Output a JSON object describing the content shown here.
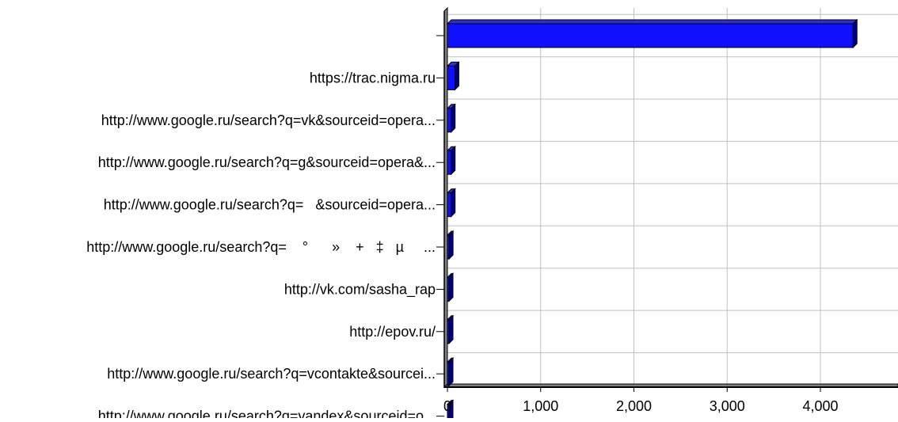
{
  "chart_data": {
    "type": "bar",
    "orientation": "horizontal",
    "style": "3d",
    "categories": [
      "",
      "https://trac.nigma.ru",
      "http://www.google.ru/search?q=vk&sourceid=opera...",
      "http://www.google.ru/search?q=g&sourceid=opera&...",
      "http://www.google.ru/search?q=   &sourceid=opera...",
      "http://www.google.ru/search?q=    °      »    +   ‡   µ     ...",
      "http://vk.com/sasha_rap",
      "http://epov.ru/",
      "http://www.google.ru/search?q=vcontakte&sourcei...",
      "http://www.google.ru/search?q=yandex&sourceid=o..."
    ],
    "values": [
      4350,
      80,
      40,
      40,
      40,
      18,
      15,
      12,
      12,
      12
    ],
    "xlim": [
      0,
      4750
    ],
    "xticks": [
      0,
      1000,
      2000,
      3000,
      4000
    ],
    "xtick_labels": [
      "0",
      "1,000",
      "2,000",
      "3,000",
      "4,000"
    ],
    "grid": true,
    "colors": {
      "bar_front": "#1010ff",
      "bar_top": "#3030c8",
      "bar_side": "#000080",
      "grid": "#c0c0c0",
      "axis": "#000000",
      "wall": "#808080"
    }
  }
}
